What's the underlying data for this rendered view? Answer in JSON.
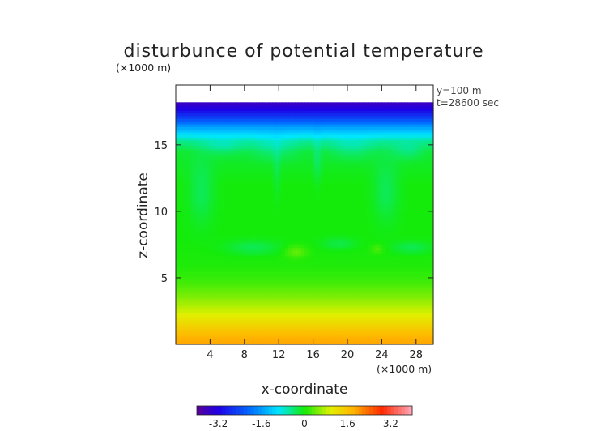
{
  "chart_data": {
    "type": "heatmap",
    "title": "disturbunce of potential temperature",
    "y_unit": "(×1000 m)",
    "x_unit": "(×1000 m)",
    "info": [
      "y=100 m",
      "t=28600 sec"
    ],
    "xlabel": "x-coordinate",
    "ylabel": "z-coordinate",
    "xlim": [
      0,
      30
    ],
    "ylim": [
      0,
      19.5
    ],
    "data_top": 18.2,
    "x_ticks": [
      4,
      8,
      12,
      16,
      20,
      24,
      28
    ],
    "y_ticks": [
      5,
      10,
      15
    ],
    "colorbar": {
      "range": [
        -4.0,
        4.0
      ],
      "ticks": [
        -3.2,
        -1.6,
        0,
        1.6,
        3.2
      ],
      "tick_labels": [
        "-3.2",
        "-1.6",
        "0",
        "1.6",
        "3.2"
      ]
    },
    "vertical_profile": [
      {
        "z": 0.0,
        "value": 1.9
      },
      {
        "z": 0.6,
        "value": 1.8
      },
      {
        "z": 1.2,
        "value": 1.5
      },
      {
        "z": 1.8,
        "value": 1.2
      },
      {
        "z": 2.4,
        "value": 0.9
      },
      {
        "z": 3.0,
        "value": 0.7
      },
      {
        "z": 3.6,
        "value": 0.5
      },
      {
        "z": 4.3,
        "value": 0.3
      },
      {
        "z": 5.0,
        "value": 0.15
      },
      {
        "z": 6.0,
        "value": 0.05
      },
      {
        "z": 8.0,
        "value": 0.0
      },
      {
        "z": 12.0,
        "value": 0.0
      },
      {
        "z": 14.5,
        "value": -0.15
      },
      {
        "z": 15.3,
        "value": -0.5
      },
      {
        "z": 15.8,
        "value": -1.0
      },
      {
        "z": 16.4,
        "value": -1.6
      },
      {
        "z": 17.0,
        "value": -2.4
      },
      {
        "z": 17.6,
        "value": -3.1
      },
      {
        "z": 18.2,
        "value": -3.6
      }
    ],
    "anomalies": [
      {
        "x": 14.0,
        "z": 7.0,
        "rx": 1.4,
        "rz": 0.5,
        "value": 0.35
      },
      {
        "x": 23.5,
        "z": 7.2,
        "rx": 0.8,
        "rz": 0.35,
        "value": 0.25
      },
      {
        "x": 9.0,
        "z": 7.3,
        "rx": 3.5,
        "rz": 0.6,
        "value": -0.3
      },
      {
        "x": 19.0,
        "z": 7.6,
        "rx": 2.2,
        "rz": 0.5,
        "value": -0.25
      },
      {
        "x": 27.5,
        "z": 7.3,
        "rx": 2.5,
        "rz": 0.5,
        "value": -0.3
      },
      {
        "x": 11.5,
        "z": 14.8,
        "rx": 3.0,
        "rz": 1.0,
        "value": -0.3
      },
      {
        "x": 5.5,
        "z": 14.9,
        "rx": 2.5,
        "rz": 0.7,
        "value": -0.3
      },
      {
        "x": 20.5,
        "z": 14.8,
        "rx": 3.0,
        "rz": 0.9,
        "value": -0.3
      },
      {
        "x": 27.0,
        "z": 14.6,
        "rx": 2.0,
        "rz": 0.7,
        "value": -0.3
      },
      {
        "x": 3.0,
        "z": 11.5,
        "rx": 1.6,
        "rz": 2.6,
        "value": -0.3
      },
      {
        "x": 24.5,
        "z": 11.5,
        "rx": 1.6,
        "rz": 2.4,
        "value": -0.3
      },
      {
        "x": 16.5,
        "z": 14.0,
        "rx": 0.5,
        "rz": 2.0,
        "value": -0.25
      },
      {
        "x": 11.8,
        "z": 13.2,
        "rx": 0.4,
        "rz": 2.2,
        "value": -0.2
      }
    ]
  }
}
